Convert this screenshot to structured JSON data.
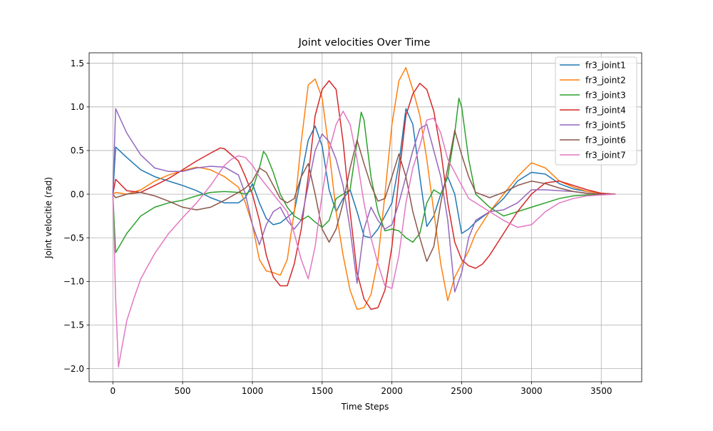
{
  "chart_data": {
    "type": "line",
    "title": "Joint velocities Over Time",
    "xlabel": "Time Steps",
    "ylabel": "Joint velocitie (rad)",
    "xlim": [
      -170,
      3790
    ],
    "ylim": [
      -2.15,
      1.62
    ],
    "xticks": [
      0,
      500,
      1000,
      1500,
      2000,
      2500,
      3000,
      3500
    ],
    "yticks": [
      -2.0,
      -1.5,
      -1.0,
      -0.5,
      0.0,
      0.5,
      1.0,
      1.5
    ],
    "xtick_labels": [
      "0",
      "500",
      "1000",
      "1500",
      "2000",
      "2500",
      "3000",
      "3500"
    ],
    "ytick_labels": [
      "−2.0",
      "−1.5",
      "−1.0",
      "−0.5",
      "0.0",
      "0.5",
      "1.0",
      "1.5"
    ],
    "grid": true,
    "legend_position": "top-right",
    "series": [
      {
        "name": "fr3_joint1",
        "color": "#1f77b4",
        "x": [
          0,
          20,
          100,
          200,
          300,
          400,
          500,
          600,
          700,
          800,
          900,
          950,
          1000,
          1050,
          1100,
          1150,
          1200,
          1300,
          1350,
          1400,
          1450,
          1500,
          1550,
          1600,
          1650,
          1700,
          1750,
          1800,
          1850,
          1900,
          1950,
          2000,
          2050,
          2100,
          2150,
          2200,
          2250,
          2300,
          2350,
          2400,
          2450,
          2500,
          2550,
          2600,
          2700,
          2800,
          2900,
          3000,
          3100,
          3200,
          3300,
          3400,
          3500,
          3600
        ],
        "y": [
          0,
          0.54,
          0.42,
          0.28,
          0.2,
          0.15,
          0.1,
          0.04,
          -0.04,
          -0.1,
          -0.1,
          -0.04,
          0.12,
          -0.1,
          -0.28,
          -0.35,
          -0.33,
          -0.2,
          0.2,
          0.62,
          0.78,
          0.55,
          0.05,
          -0.2,
          -0.05,
          0.05,
          -0.2,
          -0.48,
          -0.5,
          -0.4,
          -0.25,
          -0.1,
          0.35,
          0.98,
          0.8,
          0.2,
          -0.37,
          -0.25,
          0.0,
          0.2,
          0.0,
          -0.45,
          -0.4,
          -0.32,
          -0.2,
          -0.05,
          0.15,
          0.25,
          0.23,
          0.12,
          0.06,
          0.03,
          0.01,
          0
        ]
      },
      {
        "name": "fr3_joint2",
        "color": "#ff7f0e",
        "x": [
          0,
          20,
          100,
          200,
          300,
          400,
          500,
          600,
          700,
          800,
          900,
          950,
          1000,
          1050,
          1100,
          1150,
          1200,
          1250,
          1300,
          1350,
          1400,
          1450,
          1500,
          1550,
          1600,
          1650,
          1700,
          1750,
          1800,
          1850,
          1900,
          1950,
          2000,
          2050,
          2100,
          2150,
          2200,
          2250,
          2300,
          2350,
          2400,
          2450,
          2500,
          2550,
          2600,
          2700,
          2800,
          2900,
          3000,
          3100,
          3200,
          3300,
          3400,
          3500,
          3600
        ],
        "y": [
          0,
          0.02,
          0.0,
          0.05,
          0.15,
          0.22,
          0.27,
          0.31,
          0.28,
          0.2,
          0.08,
          -0.1,
          -0.35,
          -0.75,
          -0.88,
          -0.9,
          -0.93,
          -0.75,
          -0.2,
          0.6,
          1.25,
          1.32,
          1.1,
          0.5,
          -0.2,
          -0.7,
          -1.1,
          -1.32,
          -1.3,
          -1.15,
          -0.75,
          0.0,
          0.8,
          1.3,
          1.45,
          1.2,
          0.9,
          0.4,
          -0.2,
          -0.8,
          -1.22,
          -0.95,
          -0.8,
          -0.65,
          -0.45,
          -0.2,
          0.0,
          0.2,
          0.36,
          0.3,
          0.15,
          0.08,
          0.03,
          0.01,
          0
        ]
      },
      {
        "name": "fr3_joint3",
        "color": "#2ca02c",
        "x": [
          0,
          20,
          100,
          200,
          300,
          400,
          500,
          600,
          700,
          800,
          900,
          950,
          1000,
          1050,
          1080,
          1100,
          1150,
          1200,
          1250,
          1300,
          1350,
          1400,
          1450,
          1500,
          1550,
          1600,
          1650,
          1700,
          1750,
          1780,
          1800,
          1850,
          1900,
          1950,
          2000,
          2050,
          2100,
          2150,
          2200,
          2250,
          2300,
          2350,
          2400,
          2450,
          2480,
          2500,
          2550,
          2600,
          2700,
          2800,
          2900,
          3000,
          3100,
          3200,
          3300,
          3400,
          3500,
          3600
        ],
        "y": [
          0,
          -0.67,
          -0.45,
          -0.25,
          -0.15,
          -0.1,
          -0.07,
          -0.02,
          0.02,
          0.03,
          0.02,
          0.0,
          0.05,
          0.3,
          0.49,
          0.45,
          0.25,
          0.0,
          -0.15,
          -0.25,
          -0.3,
          -0.25,
          -0.32,
          -0.38,
          -0.3,
          -0.05,
          0.0,
          0.05,
          0.6,
          0.94,
          0.85,
          0.2,
          -0.2,
          -0.42,
          -0.4,
          -0.42,
          -0.5,
          -0.55,
          -0.45,
          -0.1,
          0.05,
          0.0,
          0.2,
          0.7,
          1.1,
          1.0,
          0.4,
          0.0,
          -0.15,
          -0.25,
          -0.2,
          -0.15,
          -0.1,
          -0.05,
          -0.02,
          -0.01,
          0,
          0
        ]
      },
      {
        "name": "fr3_joint4",
        "color": "#d62728",
        "x": [
          0,
          20,
          100,
          200,
          300,
          400,
          500,
          600,
          700,
          770,
          800,
          900,
          950,
          1000,
          1050,
          1100,
          1150,
          1200,
          1250,
          1300,
          1350,
          1400,
          1450,
          1500,
          1550,
          1600,
          1650,
          1700,
          1750,
          1800,
          1850,
          1900,
          1950,
          2000,
          2050,
          2100,
          2150,
          2200,
          2250,
          2300,
          2350,
          2400,
          2450,
          2500,
          2550,
          2600,
          2650,
          2700,
          2800,
          2900,
          3000,
          3100,
          3200,
          3300,
          3400,
          3500,
          3600
        ],
        "y": [
          0,
          0.17,
          0.04,
          0.02,
          0.1,
          0.18,
          0.28,
          0.38,
          0.47,
          0.53,
          0.52,
          0.38,
          0.2,
          0.0,
          -0.3,
          -0.7,
          -0.95,
          -1.05,
          -1.05,
          -0.8,
          -0.4,
          0.2,
          0.9,
          1.2,
          1.3,
          1.2,
          0.6,
          -0.2,
          -0.9,
          -1.2,
          -1.32,
          -1.3,
          -1.1,
          -0.6,
          0.2,
          0.9,
          1.15,
          1.27,
          1.2,
          0.95,
          0.5,
          -0.1,
          -0.55,
          -0.75,
          -0.82,
          -0.85,
          -0.8,
          -0.7,
          -0.45,
          -0.2,
          0.0,
          0.13,
          0.15,
          0.1,
          0.05,
          0.01,
          0
        ]
      },
      {
        "name": "fr3_joint5",
        "color": "#9467bd",
        "x": [
          0,
          20,
          100,
          200,
          300,
          400,
          500,
          600,
          700,
          800,
          900,
          950,
          1000,
          1050,
          1100,
          1150,
          1200,
          1250,
          1300,
          1350,
          1400,
          1450,
          1500,
          1550,
          1600,
          1650,
          1700,
          1750,
          1800,
          1850,
          1900,
          1950,
          2000,
          2050,
          2100,
          2150,
          2200,
          2250,
          2300,
          2350,
          2400,
          2450,
          2500,
          2550,
          2600,
          2700,
          2800,
          2900,
          3000,
          3100,
          3200,
          3300,
          3400,
          3500,
          3600
        ],
        "y": [
          0,
          0.98,
          0.7,
          0.45,
          0.3,
          0.26,
          0.26,
          0.3,
          0.32,
          0.31,
          0.22,
          0.0,
          -0.35,
          -0.58,
          -0.35,
          -0.2,
          -0.15,
          -0.3,
          -0.4,
          -0.3,
          0.1,
          0.5,
          0.69,
          0.6,
          0.4,
          0.1,
          -0.4,
          -1.02,
          -0.4,
          -0.15,
          -0.3,
          -0.4,
          -0.35,
          -0.1,
          0.2,
          0.5,
          0.75,
          0.8,
          0.5,
          0.2,
          -0.3,
          -1.12,
          -0.9,
          -0.5,
          -0.3,
          -0.2,
          -0.18,
          -0.1,
          0.05,
          0.05,
          0.04,
          0.03,
          0.01,
          0,
          0
        ]
      },
      {
        "name": "fr3_joint6",
        "color": "#8c564b",
        "x": [
          0,
          20,
          100,
          200,
          300,
          400,
          500,
          600,
          700,
          800,
          900,
          950,
          1000,
          1050,
          1100,
          1150,
          1200,
          1250,
          1300,
          1350,
          1400,
          1450,
          1500,
          1550,
          1600,
          1650,
          1700,
          1750,
          1800,
          1850,
          1900,
          1950,
          2000,
          2050,
          2100,
          2150,
          2200,
          2250,
          2300,
          2350,
          2400,
          2450,
          2500,
          2550,
          2600,
          2700,
          2800,
          2900,
          3000,
          3100,
          3200,
          3300,
          3400,
          3500,
          3600
        ],
        "y": [
          0,
          -0.04,
          0.0,
          0.02,
          -0.02,
          -0.08,
          -0.15,
          -0.18,
          -0.15,
          -0.07,
          0.02,
          0.07,
          0.15,
          0.3,
          0.25,
          0.1,
          -0.05,
          -0.1,
          -0.05,
          0.2,
          0.35,
          0.0,
          -0.4,
          -0.55,
          -0.4,
          -0.1,
          0.3,
          0.62,
          0.35,
          0.1,
          -0.08,
          -0.05,
          0.2,
          0.46,
          0.2,
          -0.2,
          -0.5,
          -0.77,
          -0.6,
          -0.1,
          0.3,
          0.73,
          0.45,
          0.2,
          0.02,
          -0.04,
          0.02,
          0.1,
          0.15,
          0.12,
          0.07,
          0.03,
          0.01,
          0,
          0
        ]
      },
      {
        "name": "fr3_joint7",
        "color": "#e377c2",
        "x": [
          0,
          20,
          40,
          100,
          150,
          200,
          300,
          400,
          500,
          600,
          700,
          800,
          850,
          900,
          950,
          1000,
          1050,
          1100,
          1150,
          1200,
          1250,
          1300,
          1350,
          1400,
          1450,
          1500,
          1550,
          1600,
          1650,
          1700,
          1750,
          1800,
          1850,
          1900,
          1950,
          2000,
          2050,
          2100,
          2150,
          2200,
          2250,
          2300,
          2350,
          2400,
          2450,
          2500,
          2550,
          2600,
          2700,
          2800,
          2900,
          3000,
          3100,
          3200,
          3300,
          3400,
          3500,
          3600
        ],
        "y": [
          0,
          -1.2,
          -1.98,
          -1.45,
          -1.2,
          -0.97,
          -0.68,
          -0.45,
          -0.27,
          -0.1,
          0.1,
          0.33,
          0.4,
          0.44,
          0.42,
          0.33,
          0.2,
          0.1,
          0.0,
          -0.1,
          -0.2,
          -0.45,
          -0.75,
          -0.97,
          -0.6,
          0.0,
          0.5,
          0.8,
          0.95,
          0.8,
          0.4,
          -0.1,
          -0.5,
          -0.8,
          -1.05,
          -1.08,
          -0.7,
          -0.1,
          0.3,
          0.55,
          0.85,
          0.87,
          0.7,
          0.4,
          0.25,
          0.1,
          -0.05,
          -0.1,
          -0.2,
          -0.3,
          -0.38,
          -0.35,
          -0.2,
          -0.1,
          -0.05,
          -0.02,
          -0.01,
          0
        ]
      }
    ]
  }
}
